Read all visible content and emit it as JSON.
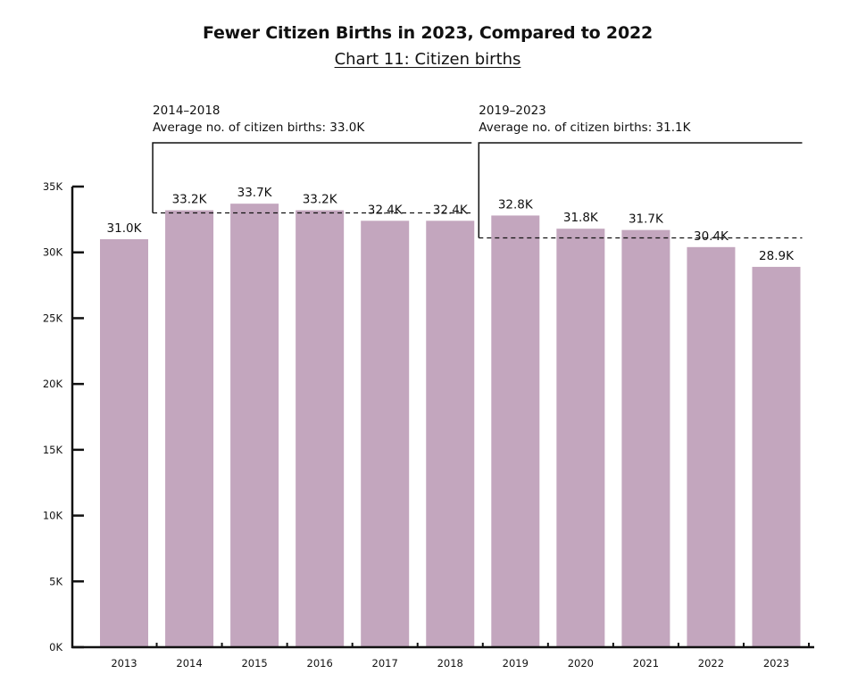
{
  "title": "Fewer Citizen Births in 2023, Compared to 2022",
  "subtitle": "Chart 11: Citizen births",
  "colors": {
    "bar": "#c3a6be",
    "axis": "#111111",
    "text": "#111111"
  },
  "chart_data": {
    "type": "bar",
    "categories": [
      "2013",
      "2014",
      "2015",
      "2016",
      "2017",
      "2018",
      "2019",
      "2020",
      "2021",
      "2022",
      "2023"
    ],
    "values": [
      31.0,
      33.2,
      33.7,
      33.2,
      32.4,
      32.4,
      32.8,
      31.8,
      31.7,
      30.4,
      28.9
    ],
    "value_labels": [
      "31.0K",
      "33.2K",
      "33.7K",
      "33.2K",
      "32.4K",
      "32.4K",
      "32.8K",
      "31.8K",
      "31.7K",
      "30.4K",
      "28.9K"
    ],
    "unit": "thousands",
    "ylim": [
      0,
      35
    ],
    "yticks": [
      0,
      5,
      10,
      15,
      20,
      25,
      30,
      35
    ],
    "ytick_labels": [
      "0K",
      "5K",
      "10K",
      "15K",
      "20K",
      "25K",
      "30K",
      "35K"
    ],
    "grid": false,
    "annotations": [
      {
        "period": "2014–2018",
        "text": "Average no. of citizen births: 33.0K",
        "average": 33.0,
        "from": "2014",
        "to": "2018"
      },
      {
        "period": "2019–2023",
        "text": "Average no. of citizen births: 31.1K",
        "average": 31.1,
        "from": "2019",
        "to": "2023"
      }
    ]
  }
}
